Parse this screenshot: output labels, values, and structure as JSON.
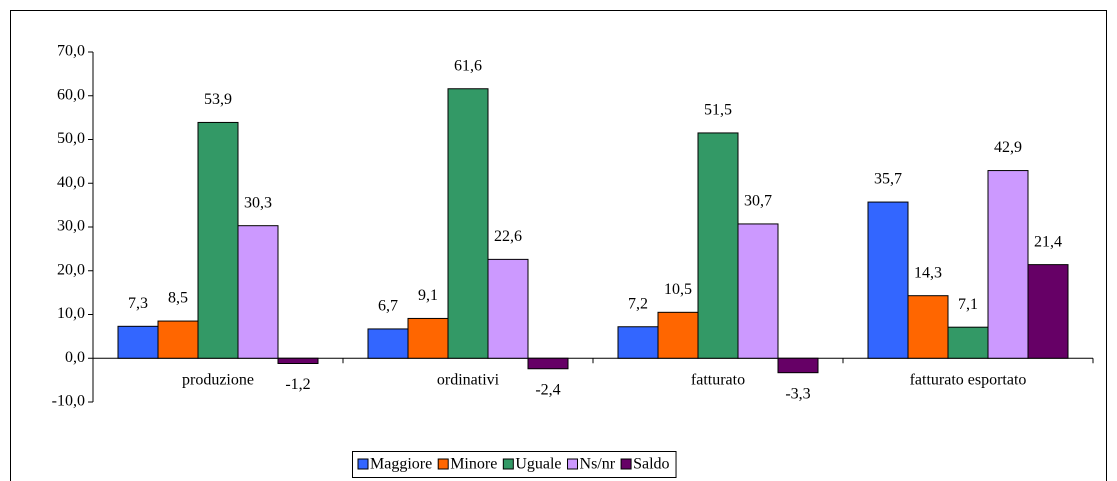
{
  "chart_data": {
    "type": "bar",
    "categories": [
      "produzione",
      "ordinativi",
      "fatturato",
      "fatturato esportato"
    ],
    "series": [
      {
        "name": "Maggiore",
        "color": "#3366ff",
        "values": [
          7.3,
          6.7,
          7.2,
          35.7
        ],
        "value_labels": [
          "7,3",
          "6,7",
          "7,2",
          "35,7"
        ]
      },
      {
        "name": "Minore",
        "color": "#ff6600",
        "values": [
          8.5,
          9.1,
          10.5,
          14.3
        ],
        "value_labels": [
          "8,5",
          "9,1",
          "10,5",
          "14,3"
        ]
      },
      {
        "name": "Uguale",
        "color": "#339966",
        "values": [
          53.9,
          61.6,
          51.5,
          7.1
        ],
        "value_labels": [
          "53,9",
          "61,6",
          "51,5",
          "7,1"
        ]
      },
      {
        "name": "Ns/nr",
        "color": "#cc99ff",
        "values": [
          30.3,
          22.6,
          30.7,
          42.9
        ],
        "value_labels": [
          "30,3",
          "22,6",
          "30,7",
          "42,9"
        ]
      },
      {
        "name": "Saldo",
        "color": "#660066",
        "values": [
          -1.2,
          -2.4,
          -3.3,
          21.4
        ],
        "value_labels": [
          "-1,2",
          "-2,4",
          "-3,3",
          "21,4"
        ]
      }
    ],
    "ylim": [
      -10,
      70
    ],
    "yticks": [
      {
        "value": -10,
        "label": "-10,0"
      },
      {
        "value": 0,
        "label": "0,0"
      },
      {
        "value": 10,
        "label": "10,0"
      },
      {
        "value": 20,
        "label": "20,0"
      },
      {
        "value": 30,
        "label": "30,0"
      },
      {
        "value": 40,
        "label": "40,0"
      },
      {
        "value": 50,
        "label": "50,0"
      },
      {
        "value": 60,
        "label": "60,0"
      },
      {
        "value": 70,
        "label": "70,0"
      }
    ],
    "legend": "bottom"
  }
}
